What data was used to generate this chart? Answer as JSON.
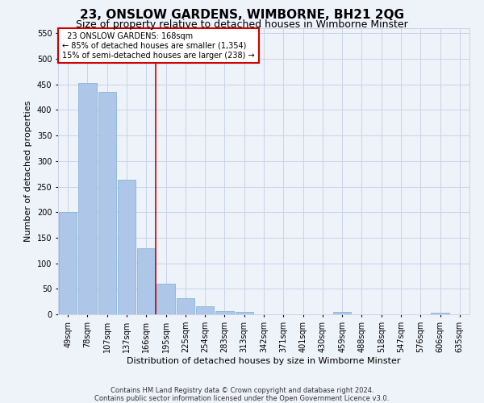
{
  "title": "23, ONSLOW GARDENS, WIMBORNE, BH21 2QG",
  "subtitle": "Size of property relative to detached houses in Wimborne Minster",
  "xlabel": "Distribution of detached houses by size in Wimborne Minster",
  "ylabel": "Number of detached properties",
  "footer_line1": "Contains HM Land Registry data © Crown copyright and database right 2024.",
  "footer_line2": "Contains public sector information licensed under the Open Government Licence v3.0.",
  "bar_labels": [
    "49sqm",
    "78sqm",
    "107sqm",
    "137sqm",
    "166sqm",
    "195sqm",
    "225sqm",
    "254sqm",
    "283sqm",
    "313sqm",
    "342sqm",
    "371sqm",
    "401sqm",
    "430sqm",
    "459sqm",
    "488sqm",
    "518sqm",
    "547sqm",
    "576sqm",
    "606sqm",
    "635sqm"
  ],
  "bar_values": [
    200,
    452,
    435,
    263,
    129,
    60,
    31,
    15,
    7,
    5,
    0,
    0,
    0,
    0,
    4,
    0,
    0,
    0,
    0,
    3,
    0
  ],
  "bar_color": "#aec6e8",
  "bar_edge_color": "#7aadd4",
  "property_line_x": 4.5,
  "annotation_text": "  23 ONSLOW GARDENS: 168sqm\n← 85% of detached houses are smaller (1,354)\n15% of semi-detached houses are larger (238) →",
  "annotation_box_color": "#ffffff",
  "annotation_box_edge_color": "#cc0000",
  "vline_color": "#cc0000",
  "ylim": [
    0,
    560
  ],
  "yticks": [
    0,
    50,
    100,
    150,
    200,
    250,
    300,
    350,
    400,
    450,
    500,
    550
  ],
  "bg_color": "#eef2f9",
  "grid_color": "#c8d4e8",
  "title_fontsize": 11,
  "subtitle_fontsize": 9,
  "axis_label_fontsize": 8,
  "tick_fontsize": 7,
  "annotation_fontsize": 7,
  "footer_fontsize": 6
}
